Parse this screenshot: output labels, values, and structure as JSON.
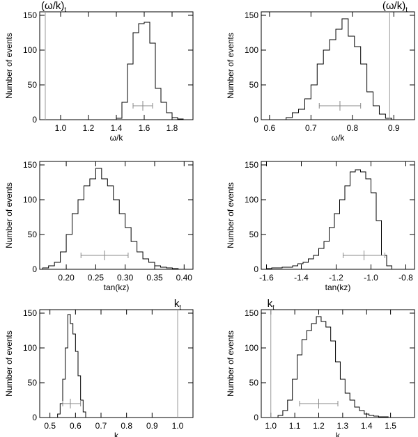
{
  "chart_data": [
    {
      "type": "histogram",
      "xlabel": "ω/k",
      "ylabel": "Number of events",
      "xlim": [
        0.85,
        1.95
      ],
      "ylim": [
        0,
        155
      ],
      "xticks": [
        1.0,
        1.2,
        1.4,
        1.6,
        1.8
      ],
      "xtick_labels": [
        "1.0",
        "1.2",
        "1.4",
        "1.6",
        "1.8"
      ],
      "yticks": [
        0,
        50,
        100,
        150
      ],
      "ytick_labels": [
        "0",
        "50",
        "100",
        "150"
      ],
      "bin_edges": [
        1.4,
        1.44,
        1.48,
        1.52,
        1.56,
        1.6,
        1.64,
        1.68,
        1.72,
        1.76,
        1.8,
        1.84,
        1.88
      ],
      "counts": [
        2,
        25,
        80,
        125,
        138,
        140,
        110,
        45,
        25,
        10,
        3,
        1
      ],
      "errorbar": {
        "center": 1.59,
        "low": 1.52,
        "high": 1.66,
        "y": 20
      },
      "true_value": {
        "label": "(ω/k)",
        "subscript": "t",
        "x": 0.89,
        "label_pos": "left"
      }
    },
    {
      "type": "histogram",
      "xlabel": "ω/k",
      "ylabel": "Number of events",
      "xlim": [
        0.58,
        0.95
      ],
      "ylim": [
        0,
        155
      ],
      "xticks": [
        0.6,
        0.7,
        0.8,
        0.9
      ],
      "xtick_labels": [
        "0.6",
        "0.7",
        "0.8",
        "0.9"
      ],
      "yticks": [
        0,
        50,
        100,
        150
      ],
      "ytick_labels": [
        "0",
        "50",
        "100",
        "150"
      ],
      "bin_edges": [
        0.64,
        0.655,
        0.67,
        0.685,
        0.7,
        0.715,
        0.73,
        0.745,
        0.76,
        0.775,
        0.79,
        0.805,
        0.82,
        0.835,
        0.85,
        0.865,
        0.88,
        0.895
      ],
      "counts": [
        3,
        10,
        15,
        30,
        50,
        80,
        100,
        115,
        130,
        145,
        120,
        105,
        80,
        40,
        20,
        8,
        2
      ],
      "errorbar": {
        "center": 0.77,
        "low": 0.72,
        "high": 0.82,
        "y": 20
      },
      "true_value": {
        "label": "(ω/k)",
        "subscript": "t",
        "x": 0.89,
        "label_pos": "right"
      }
    },
    {
      "type": "histogram",
      "xlabel": "tan(kz)",
      "ylabel": "Number of events",
      "xlim": [
        0.155,
        0.415
      ],
      "ylim": [
        0,
        155
      ],
      "xticks": [
        0.2,
        0.25,
        0.3,
        0.35,
        0.4
      ],
      "xtick_labels": [
        "0.20",
        "0.25",
        "0.30",
        "0.35",
        "0.40"
      ],
      "yticks": [
        0,
        50,
        100,
        150
      ],
      "ytick_labels": [
        "0",
        "50",
        "100",
        "150"
      ],
      "bin_edges": [
        0.16,
        0.17,
        0.18,
        0.19,
        0.2,
        0.21,
        0.22,
        0.23,
        0.24,
        0.25,
        0.26,
        0.27,
        0.28,
        0.29,
        0.3,
        0.31,
        0.32,
        0.33,
        0.34,
        0.35,
        0.36,
        0.37,
        0.38,
        0.39,
        0.4
      ],
      "counts": [
        2,
        5,
        10,
        25,
        50,
        80,
        100,
        120,
        130,
        145,
        130,
        120,
        100,
        80,
        60,
        40,
        25,
        15,
        10,
        5,
        3,
        2,
        1,
        0
      ],
      "errorbar": {
        "center": 0.265,
        "low": 0.225,
        "high": 0.305,
        "y": 20
      },
      "true_value": null
    },
    {
      "type": "histogram",
      "xlabel": "tan(kz)",
      "ylabel": "Number of events",
      "xlim": [
        -1.63,
        -0.75
      ],
      "ylim": [
        0,
        155
      ],
      "xticks": [
        -1.6,
        -1.4,
        -1.2,
        -1.0,
        -0.8
      ],
      "xtick_labels": [
        "-1.6",
        "-1.4",
        "-1.2",
        "-1.0",
        "-0.8"
      ],
      "yticks": [
        0,
        50,
        100,
        150
      ],
      "ytick_labels": [
        "0",
        "50",
        "100",
        "150"
      ],
      "bin_edges": [
        -1.6,
        -1.57,
        -1.54,
        -1.51,
        -1.48,
        -1.45,
        -1.42,
        -1.39,
        -1.36,
        -1.33,
        -1.3,
        -1.27,
        -1.24,
        -1.21,
        -1.18,
        -1.15,
        -1.12,
        -1.09,
        -1.06,
        -1.03,
        -1.0,
        -0.97,
        -0.94,
        -0.91,
        -0.88
      ],
      "counts": [
        1,
        2,
        2,
        3,
        3,
        5,
        8,
        10,
        15,
        20,
        30,
        40,
        60,
        80,
        100,
        120,
        140,
        143,
        140,
        130,
        110,
        70,
        20,
        5
      ],
      "errorbar": {
        "center": -1.04,
        "low": -1.16,
        "high": -0.92,
        "y": 20
      },
      "true_value": null
    },
    {
      "type": "histogram",
      "xlabel": "k",
      "ylabel": "Number of events",
      "xlim": [
        0.46,
        1.06
      ],
      "ylim": [
        0,
        155
      ],
      "xticks": [
        0.5,
        0.6,
        0.7,
        0.8,
        0.9,
        1.0
      ],
      "xtick_labels": [
        "0.5",
        "0.6",
        "0.7",
        "0.8",
        "0.9",
        "1.0"
      ],
      "yticks": [
        0,
        50,
        100,
        150
      ],
      "ytick_labels": [
        "0",
        "50",
        "100",
        "150"
      ],
      "bin_edges": [
        0.53,
        0.54,
        0.55,
        0.56,
        0.57,
        0.58,
        0.59,
        0.6,
        0.61,
        0.62,
        0.63,
        0.64
      ],
      "counts": [
        5,
        20,
        55,
        100,
        148,
        135,
        120,
        95,
        60,
        25,
        8
      ],
      "errorbar": {
        "center": 0.58,
        "low": 0.55,
        "high": 0.62,
        "y": 20
      },
      "true_value": {
        "label": "k",
        "subscript": "t",
        "x": 1.0,
        "label_pos": "top"
      }
    },
    {
      "type": "histogram",
      "xlabel": "k",
      "ylabel": "Number of events",
      "xlim": [
        0.96,
        1.6
      ],
      "ylim": [
        0,
        155
      ],
      "xticks": [
        1.0,
        1.1,
        1.2,
        1.3,
        1.4,
        1.5
      ],
      "xtick_labels": [
        "1.0",
        "1.1",
        "1.2",
        "1.3",
        "1.4",
        "1.5"
      ],
      "yticks": [
        0,
        50,
        100,
        150
      ],
      "ytick_labels": [
        "0",
        "50",
        "100",
        "150"
      ],
      "bin_edges": [
        1.03,
        1.05,
        1.07,
        1.09,
        1.11,
        1.13,
        1.15,
        1.17,
        1.19,
        1.21,
        1.23,
        1.25,
        1.27,
        1.29,
        1.31,
        1.33,
        1.35,
        1.37,
        1.39,
        1.41,
        1.43,
        1.45,
        1.47,
        1.49
      ],
      "counts": [
        3,
        10,
        25,
        55,
        90,
        112,
        125,
        135,
        145,
        138,
        130,
        110,
        80,
        55,
        35,
        25,
        15,
        10,
        5,
        3,
        2,
        1,
        1
      ],
      "errorbar": {
        "center": 1.2,
        "low": 1.12,
        "high": 1.28,
        "y": 20
      },
      "true_value": {
        "label": "k",
        "subscript": "t",
        "x": 1.0,
        "label_pos": "top"
      }
    }
  ]
}
